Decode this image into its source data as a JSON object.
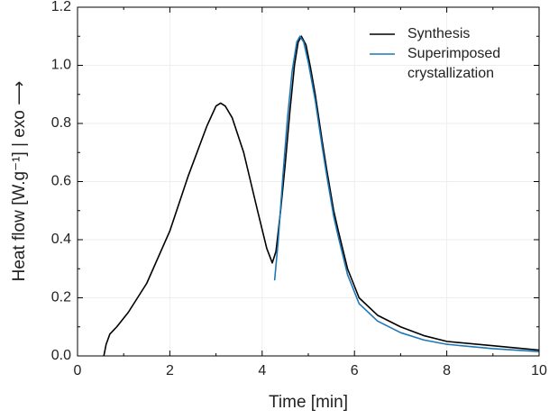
{
  "chart_data": {
    "type": "line",
    "xlabel": "Time [min]",
    "ylabel": "Heat flow [W.g⁻¹] | exo ⟶",
    "xlim": [
      0,
      10
    ],
    "ylim": [
      0,
      1.2
    ],
    "xticks": [
      0,
      2,
      4,
      6,
      8,
      10
    ],
    "yticks": [
      {
        "value": 0,
        "label": "0.0"
      },
      0.2,
      0.4,
      0.6,
      0.8,
      {
        "value": 1,
        "label": "1.0"
      },
      1.2
    ],
    "grid": true,
    "legend": "upper right",
    "series": [
      {
        "name": "Synthesis",
        "color": "#000000",
        "x": [
          0.57,
          0.62,
          0.7,
          0.85,
          1.1,
          1.5,
          2.0,
          2.4,
          2.8,
          3.0,
          3.1,
          3.2,
          3.35,
          3.6,
          3.9,
          4.1,
          4.22,
          4.3,
          4.4,
          4.5,
          4.6,
          4.7,
          4.78,
          4.85,
          4.95,
          5.05,
          5.15,
          5.3,
          5.4,
          5.55,
          5.65,
          5.85,
          6.1,
          6.5,
          7.0,
          7.5,
          8.0,
          9.0,
          10.0
        ],
        "values": [
          0,
          0.04,
          0.075,
          0.1,
          0.15,
          0.25,
          0.43,
          0.62,
          0.79,
          0.86,
          0.87,
          0.86,
          0.82,
          0.7,
          0.5,
          0.37,
          0.32,
          0.36,
          0.5,
          0.66,
          0.84,
          1.0,
          1.08,
          1.1,
          1.07,
          0.99,
          0.9,
          0.74,
          0.64,
          0.5,
          0.43,
          0.3,
          0.2,
          0.14,
          0.1,
          0.07,
          0.05,
          0.035,
          0.02
        ]
      },
      {
        "name": "Superimposed\ncrystallization",
        "color": "#1f77b4",
        "x": [
          4.27,
          4.35,
          4.45,
          4.55,
          4.65,
          4.75,
          4.82,
          4.9,
          5.0,
          5.15,
          5.3,
          5.4,
          5.55,
          5.65,
          5.85,
          6.1,
          6.5,
          7.0,
          7.5,
          8.0,
          9.0,
          10.0
        ],
        "values": [
          0.26,
          0.4,
          0.62,
          0.82,
          0.98,
          1.08,
          1.1,
          1.08,
          1.01,
          0.88,
          0.72,
          0.62,
          0.48,
          0.41,
          0.28,
          0.18,
          0.12,
          0.08,
          0.055,
          0.04,
          0.025,
          0.015
        ]
      }
    ]
  }
}
